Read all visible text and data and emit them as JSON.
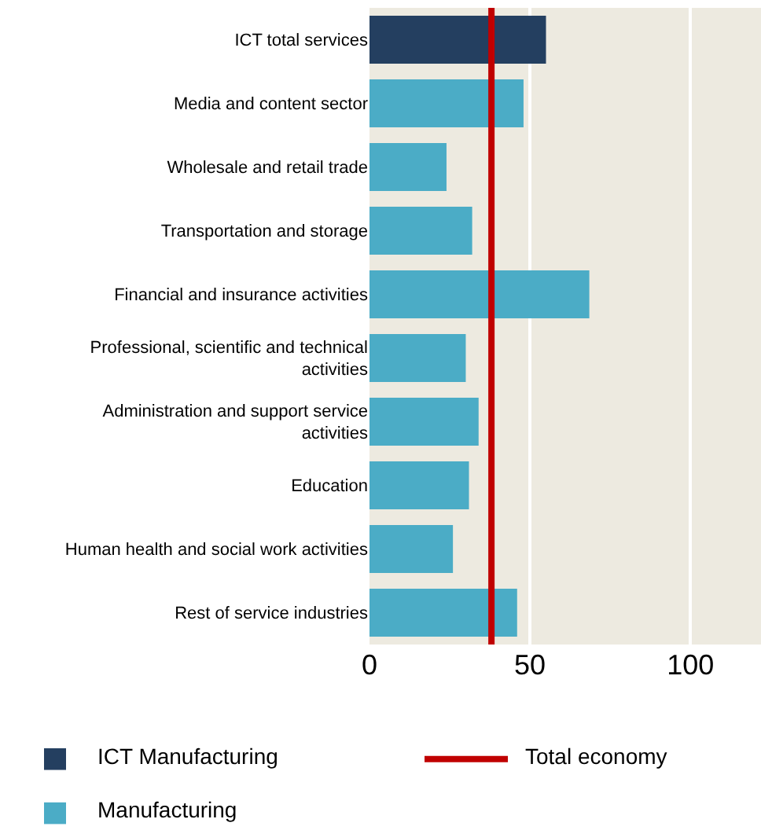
{
  "chart_data": {
    "type": "bar",
    "orientation": "horizontal",
    "categories": [
      "ICT total services",
      "Media and content sector",
      "Wholesale and retail trade",
      "Transportation and storage",
      "Financial and insurance activities",
      "Professional, scientific and technical activities",
      "Administration and support service activities",
      "Education",
      "Human health and social work activities",
      "Rest of service industries"
    ],
    "series": [
      {
        "name": "ICT Manufacturing",
        "color": "#243f60",
        "values": [
          55,
          null,
          null,
          null,
          null,
          null,
          null,
          null,
          null,
          null
        ]
      },
      {
        "name": "Manufacturing",
        "color": "#4bacc6",
        "values": [
          null,
          48,
          24,
          32,
          68.5,
          30,
          34,
          31,
          26,
          46
        ]
      }
    ],
    "xlim": [
      0,
      122
    ],
    "xticks": [
      0,
      50,
      100
    ],
    "grid": "x",
    "legend": "bottom",
    "ref_lines": [
      {
        "axis": "x",
        "value": 38,
        "label": "Total economy",
        "color": "#c00000"
      }
    ]
  }
}
